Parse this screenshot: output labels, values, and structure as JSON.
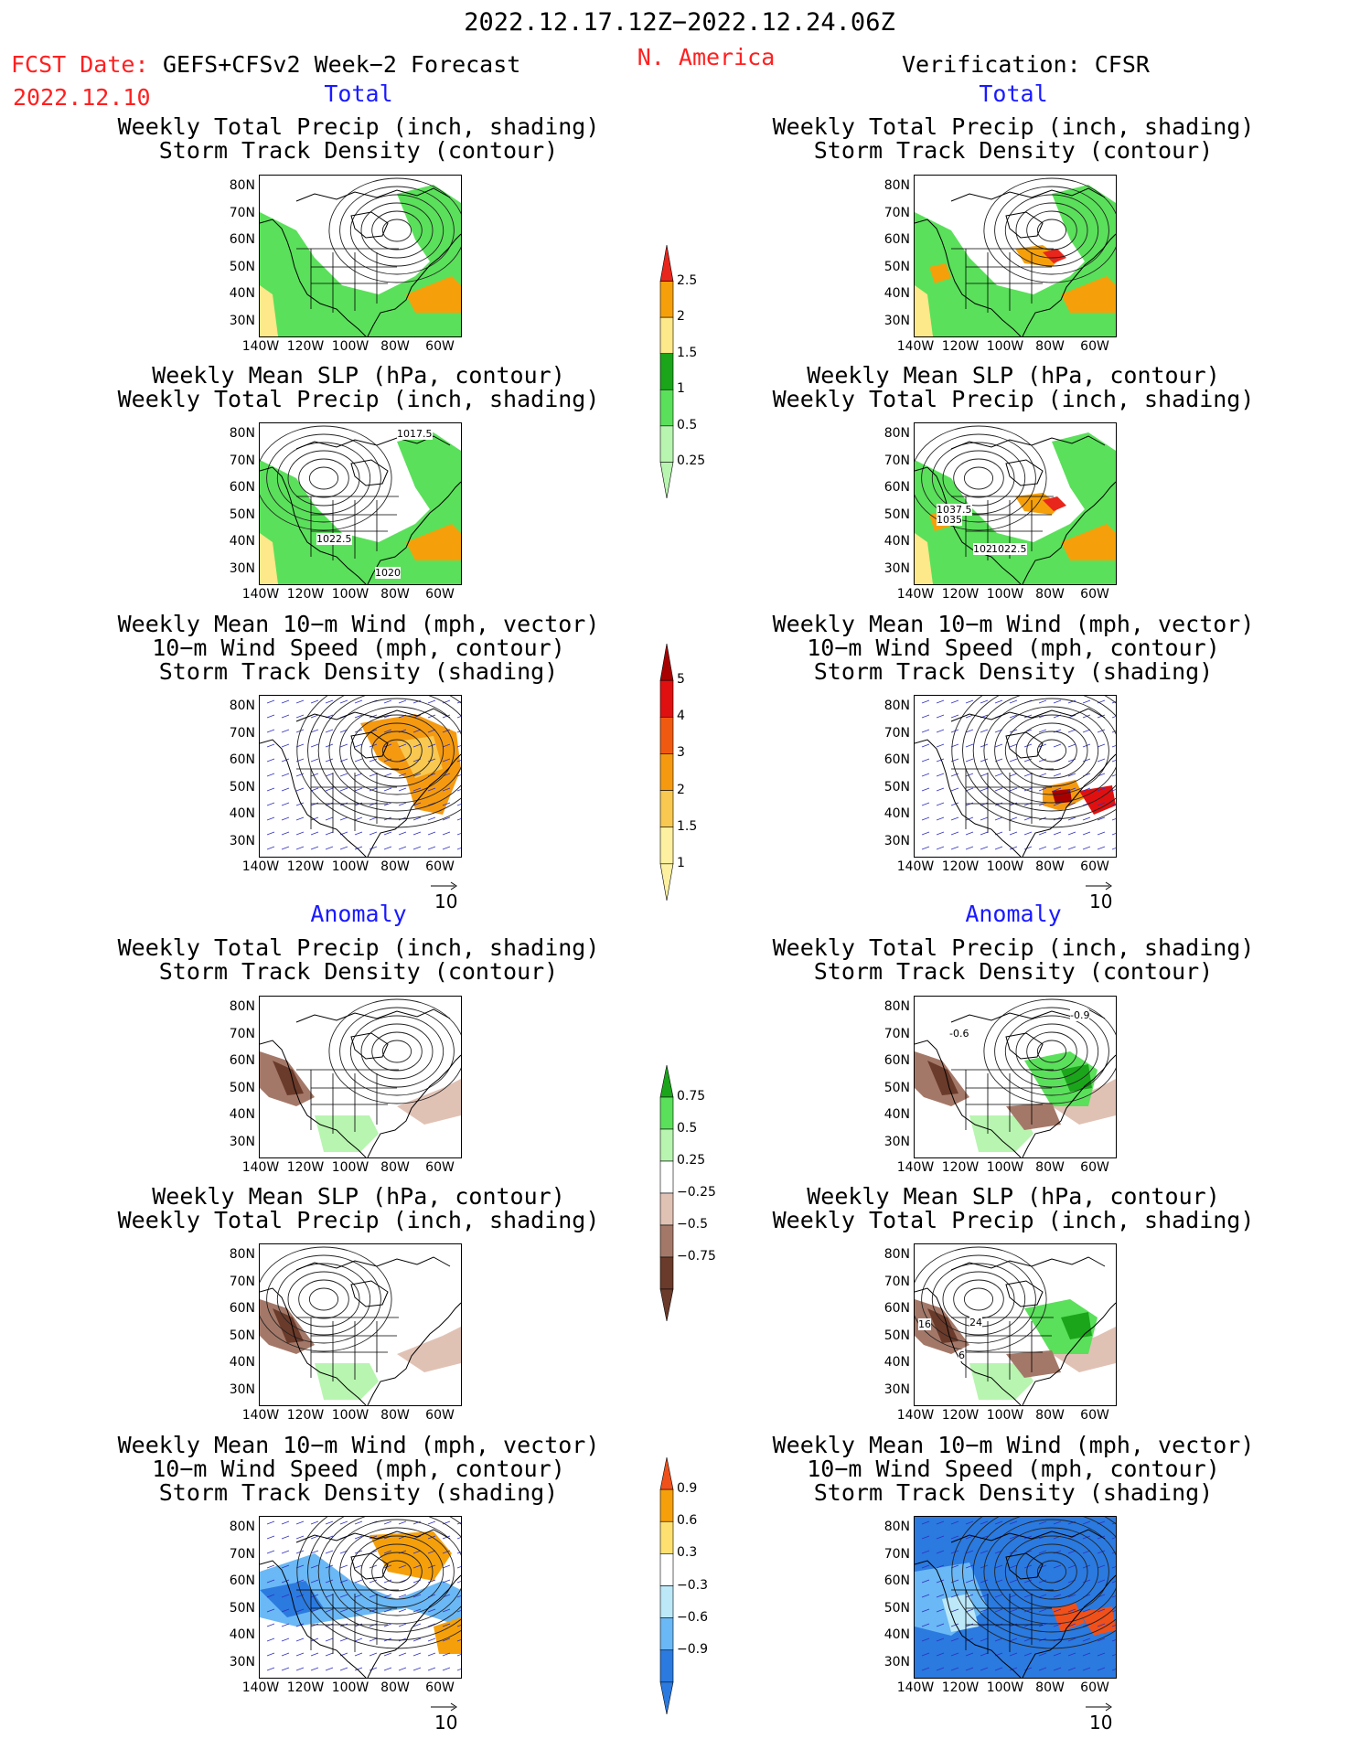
{
  "header": {
    "period": "2022.12.17.12Z−2022.12.24.06Z",
    "fcst_label": "FCST Date:",
    "fcst_date": "2022.12.10",
    "model": "GEFS+CFSv2 Week−2 Forecast",
    "region": "N. America",
    "verification": "Verification: CFSR"
  },
  "sections": {
    "total": "Total",
    "anomaly": "Anomaly"
  },
  "panel_titles": {
    "precip_track": [
      "Weekly Total Precip (inch, shading)",
      "Storm Track Density (contour)"
    ],
    "slp_precip": [
      "Weekly Mean SLP (hPa, contour)",
      "Weekly Total Precip (inch, shading)"
    ],
    "wind_track": [
      "Weekly Mean 10−m Wind (mph, vector)",
      "10−m Wind Speed (mph, contour)",
      "Storm Track Density (shading)"
    ]
  },
  "axes": {
    "lat_ticks": [
      "80N",
      "70N",
      "60N",
      "50N",
      "40N",
      "30N"
    ],
    "lon_ticks": [
      "140W",
      "120W",
      "100W",
      "80W",
      "60W"
    ]
  },
  "vector_ref": "10",
  "contour_labels": {
    "fcst_slp": [
      "1017.5",
      "1022.5",
      "1020"
    ],
    "obs_slp": [
      "1037.5",
      "1035",
      "1025",
      "1022.5"
    ],
    "obs_precip_anom": [
      "-0.9",
      "-0.6"
    ],
    "anom_slp_obs": [
      "16",
      "24",
      "6"
    ]
  },
  "colorbars": {
    "precip_total": {
      "labels": [
        "2.5",
        "2",
        "1.5",
        "1",
        "0.5",
        "0.25"
      ],
      "colors": [
        "#e8261c",
        "#f5a00a",
        "#fde88a",
        "#1aa51a",
        "#5ae05a",
        "#b8f5b0"
      ]
    },
    "track_total": {
      "labels": [
        "5",
        "4",
        "3",
        "2",
        "1.5",
        "1"
      ],
      "colors": [
        "#a80000",
        "#e01010",
        "#f05a10",
        "#f59a10",
        "#f8c850",
        "#fdf0a0"
      ]
    },
    "precip_anom": {
      "labels": [
        "0.75",
        "0.5",
        "0.25",
        "−0.25",
        "−0.5",
        "−0.75"
      ],
      "colors": [
        "#1aa51a",
        "#5ae05a",
        "#b8f5b0",
        "#ffffff",
        "#e0c2b5",
        "#a47868",
        "#6a3a2a"
      ]
    },
    "track_anom": {
      "labels": [
        "0.9",
        "0.6",
        "0.3",
        "−0.3",
        "−0.6",
        "−0.9"
      ],
      "colors": [
        "#f0501a",
        "#f5a00a",
        "#fde070",
        "#ffffff",
        "#bce8f8",
        "#6ab8f5",
        "#2a7ae0"
      ]
    }
  },
  "chart_data": {
    "type": "heatmap",
    "title": "2022.12.17.12Z−2022.12.24.06Z",
    "subtitle": "N. America",
    "x_ticks": [
      "140W",
      "120W",
      "100W",
      "80W",
      "60W"
    ],
    "y_ticks": [
      "30N",
      "40N",
      "50N",
      "60N",
      "70N",
      "80N"
    ],
    "panels": [
      {
        "column": "GEFS+CFSv2 Week−2 Forecast",
        "section": "Total",
        "fields": [
          "Weekly Total Precip (inch, shading)",
          "Storm Track Density (contour)"
        ]
      },
      {
        "column": "GEFS+CFSv2 Week−2 Forecast",
        "section": "Total",
        "fields": [
          "Weekly Mean SLP (hPa, contour)",
          "Weekly Total Precip (inch, shading)"
        ]
      },
      {
        "column": "GEFS+CFSv2 Week−2 Forecast",
        "section": "Total",
        "fields": [
          "Weekly Mean 10−m Wind (mph, vector)",
          "10−m Wind Speed (mph, contour)",
          "Storm Track Density (shading)"
        ]
      },
      {
        "column": "GEFS+CFSv2 Week−2 Forecast",
        "section": "Anomaly",
        "fields": [
          "Weekly Total Precip (inch, shading)",
          "Storm Track Density (contour)"
        ]
      },
      {
        "column": "GEFS+CFSv2 Week−2 Forecast",
        "section": "Anomaly",
        "fields": [
          "Weekly Mean SLP (hPa, contour)",
          "Weekly Total Precip (inch, shading)"
        ]
      },
      {
        "column": "GEFS+CFSv2 Week−2 Forecast",
        "section": "Anomaly",
        "fields": [
          "Weekly Mean 10−m Wind (mph, vector)",
          "10−m Wind Speed (mph, contour)",
          "Storm Track Density (shading)"
        ]
      },
      {
        "column": "Verification: CFSR",
        "section": "Total",
        "fields": [
          "Weekly Total Precip (inch, shading)",
          "Storm Track Density (contour)"
        ]
      },
      {
        "column": "Verification: CFSR",
        "section": "Total",
        "fields": [
          "Weekly Mean SLP (hPa, contour)",
          "Weekly Total Precip (inch, shading)"
        ]
      },
      {
        "column": "Verification: CFSR",
        "section": "Total",
        "fields": [
          "Weekly Mean 10−m Wind (mph, vector)",
          "10−m Wind Speed (mph, contour)",
          "Storm Track Density (shading)"
        ]
      },
      {
        "column": "Verification: CFSR",
        "section": "Anomaly",
        "fields": [
          "Weekly Total Precip (inch, shading)",
          "Storm Track Density (contour)"
        ]
      },
      {
        "column": "Verification: CFSR",
        "section": "Anomaly",
        "fields": [
          "Weekly Mean SLP (hPa, contour)",
          "Weekly Total Precip (inch, shading)"
        ]
      },
      {
        "column": "Verification: CFSR",
        "section": "Anomaly",
        "fields": [
          "Weekly Mean 10−m Wind (mph, vector)",
          "10−m Wind Speed (mph, contour)",
          "Storm Track Density (shading)"
        ]
      }
    ],
    "colorbar_levels": {
      "precip_total": [
        0.25,
        0.5,
        1,
        1.5,
        2,
        2.5
      ],
      "track_total": [
        1,
        1.5,
        2,
        3,
        4,
        5
      ],
      "precip_anom": [
        -0.75,
        -0.5,
        -0.25,
        0.25,
        0.5,
        0.75
      ],
      "track_anom": [
        -0.9,
        -0.6,
        -0.3,
        0.3,
        0.6,
        0.9
      ]
    }
  }
}
